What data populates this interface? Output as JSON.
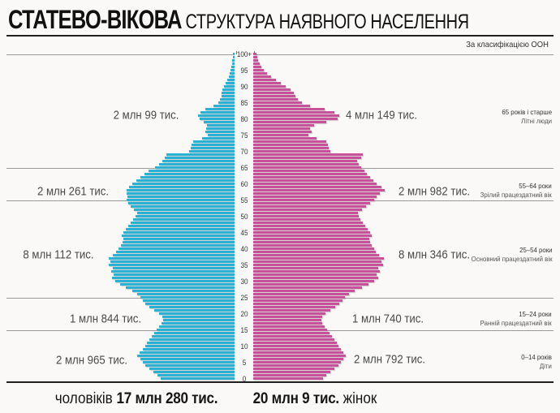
{
  "title": {
    "main": "СТАТЕВО-ВІКОВА",
    "rest": "СТРУКТУРА НАЯВНОГО НАСЕЛЕННЯ"
  },
  "classification_note": "За класифікацією ООН",
  "colors": {
    "men_bar": "#29b2d6",
    "women_bar": "#c9519c",
    "boundary_line": "#9a9a9a",
    "axis_line": "#1f1f1f",
    "text_dark": "#161616",
    "text_gray": "#4a4a4a"
  },
  "age_groups": [
    {
      "range": "65 років і старше",
      "name": "Літні люди",
      "men_total": "2 млн 99 тис.",
      "women_total": "4 млн 149 тис."
    },
    {
      "range": "55–64 роки",
      "name": "Зрілий працездатний вік",
      "men_total": "2 млн 261 тис.",
      "women_total": "2 млн 982 тис."
    },
    {
      "range": "25–54 роки",
      "name": "Основний працездатний вік",
      "men_total": "8 млн 112 тис.",
      "women_total": "8 млн 346 тис."
    },
    {
      "range": "15–24 роки",
      "name": "Ранній працездатний вік",
      "men_total": "1 млн 844 тис.",
      "women_total": "1 млн 740 тис."
    },
    {
      "range": "0–14 років",
      "name": "Діти",
      "men_total": "2 млн 965 тис.",
      "women_total": "2 млн 792 тис."
    }
  ],
  "totals": {
    "men_label": "чоловіків",
    "men_value": "17 млн 280 тис.",
    "women_value": "20 млн 9 тис.",
    "women_label": "жінок"
  },
  "chart_data": {
    "type": "bar",
    "subtype": "population-pyramid",
    "title": "СТАТЕВО-ВІКОВА СТРУКТУРА НАЯВНОГО НАСЕЛЕННЯ",
    "age_min": 0,
    "age_max": 100,
    "age_step": 1,
    "values_unit": "relative cohort size (bar length read from chart, max ≈ 162)",
    "axis_ticks": [
      "0",
      "5",
      "10",
      "15",
      "20",
      "25",
      "30",
      "35",
      "40",
      "45",
      "50",
      "55",
      "60",
      "65",
      "70",
      "75",
      "80",
      "85",
      "90",
      "95",
      "100+"
    ],
    "group_boundaries_ages": [
      15,
      25,
      55,
      65,
      100
    ],
    "legend_position": "bottom",
    "grid": false,
    "series": [
      {
        "name": "чоловіки",
        "total": "17 млн 280 тис.",
        "color": "#29b2d6",
        "values": [
          91,
          95,
          100,
          105,
          110,
          113,
          116,
          120,
          117,
          113,
          110,
          108,
          105,
          102,
          99,
          96,
          93,
          90,
          88,
          89,
          93,
          99,
          105,
          110,
          113,
          116,
          120,
          126,
          134,
          141,
          147,
          151,
          149,
          152,
          150,
          155,
          153,
          155,
          150,
          146,
          143,
          140,
          138,
          137,
          139,
          137,
          134,
          131,
          128,
          125,
          122,
          120,
          124,
          128,
          131,
          133,
          132,
          133,
          133,
          130,
          126,
          121,
          116,
          111,
          106,
          98,
          93,
          89,
          86,
          84,
          56,
          54,
          53,
          51,
          40,
          33,
          36,
          35,
          34,
          38,
          43,
          45,
          42,
          36,
          26,
          20,
          18,
          16,
          16,
          15,
          13,
          11,
          9,
          7,
          6,
          5,
          4,
          3,
          3,
          2,
          2
        ]
      },
      {
        "name": "жінки",
        "total": "20 млн 9 тис.",
        "color": "#c9519c",
        "values": [
          86,
          90,
          95,
          100,
          105,
          108,
          111,
          114,
          111,
          108,
          105,
          103,
          100,
          97,
          94,
          91,
          88,
          85,
          84,
          85,
          89,
          95,
          101,
          106,
          110,
          113,
          118,
          125,
          134,
          142,
          149,
          154,
          152,
          156,
          154,
          160,
          158,
          161,
          155,
          151,
          149,
          146,
          144,
          143,
          146,
          144,
          141,
          138,
          135,
          132,
          130,
          129,
          134,
          139,
          144,
          149,
          152,
          156,
          162,
          158,
          152,
          148,
          144,
          140,
          137,
          133,
          130,
          128,
          133,
          135,
          95,
          93,
          92,
          90,
          78,
          68,
          72,
          70,
          75,
          90,
          104,
          106,
          100,
          88,
          70,
          60,
          55,
          52,
          50,
          46,
          40,
          34,
          28,
          22,
          17,
          13,
          10,
          8,
          6,
          5,
          4
        ]
      }
    ]
  }
}
